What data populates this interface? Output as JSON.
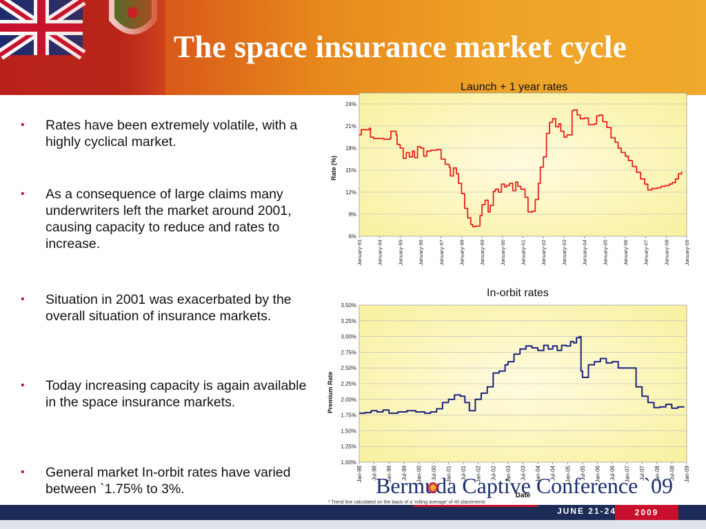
{
  "slide": {
    "title": "The space insurance market cycle",
    "bullets": [
      "Rates have been extremely volatile, with a highly cyclical market.",
      "As a consequence of large claims many underwriters left the market around 2001, causing capacity to reduce and rates to increase.",
      "Situation in 2001 was exacerbated by the overall situation of insurance markets.",
      "Today increasing capacity is again available in the space insurance markets.",
      "General market In-orbit rates have varied between `1.75% to 3%."
    ],
    "bullet_glyph": "•",
    "footnote": "* Trend line calculated on the basis of a 'rolling average' of 40 placements",
    "conference": "Bermuda Captive Conference `09",
    "dates": "JUNE 21-24",
    "year": "2009",
    "colors": {
      "header_red": "#c0321a",
      "header_orange": "#f0a92a",
      "accent_red": "#c8102e",
      "navy": "#1c2c56",
      "launch_line": "#e8201a",
      "inorbit_line": "#1a2080"
    }
  },
  "chart_data": [
    {
      "type": "line",
      "title": "Launch + 1 year rates",
      "xlabel": "",
      "ylabel": "Rate (%)",
      "yticks": [
        "6%",
        "9%",
        "12%",
        "15%",
        "18%",
        "21%",
        "24%"
      ],
      "ylim": [
        6,
        25.5
      ],
      "xticks": [
        "January-93",
        "January-94",
        "January-95",
        "January-96",
        "January-97",
        "January-98",
        "January-99",
        "January-00",
        "January-01",
        "January-02",
        "January-03",
        "January-04",
        "January-05",
        "January-06",
        "January-07",
        "January-08",
        "January-09"
      ],
      "xlim": [
        1993,
        2009
      ],
      "grid": true,
      "series": [
        {
          "color": "#e8201a",
          "x": [
            1993.0,
            1993.1,
            1993.5,
            1993.55,
            1993.7,
            1994.2,
            1994.5,
            1994.55,
            1994.8,
            1994.85,
            1995.0,
            1995.15,
            1995.3,
            1995.45,
            1995.6,
            1995.7,
            1995.85,
            1996.0,
            1996.15,
            1996.3,
            1996.5,
            1996.8,
            1997.0,
            1997.2,
            1997.4,
            1997.45,
            1997.6,
            1997.75,
            1997.85,
            1998.0,
            1998.15,
            1998.3,
            1998.45,
            1998.55,
            1998.7,
            1998.9,
            1999.0,
            1999.15,
            1999.3,
            1999.4,
            1999.55,
            1999.65,
            1999.8,
            1999.95,
            2000.1,
            2000.2,
            2000.35,
            2000.5,
            2000.65,
            2000.75,
            2000.9,
            2001.1,
            2001.25,
            2001.45,
            2001.6,
            2001.75,
            2001.85,
            2002.0,
            2002.15,
            2002.3,
            2002.45,
            2002.6,
            2002.75,
            2002.85,
            2003.0,
            2003.15,
            2003.4,
            2003.5,
            2003.65,
            2003.8,
            2004.0,
            2004.2,
            2004.5,
            2004.6,
            2004.75,
            2004.9,
            2005.1,
            2005.3,
            2005.5,
            2005.65,
            2005.8,
            2006.0,
            2006.15,
            2006.35,
            2006.55,
            2006.75,
            2006.95,
            2007.1,
            2007.3,
            2007.55,
            2007.75,
            2007.95,
            2008.15,
            2008.3,
            2008.45,
            2008.6,
            2008.75
          ],
          "y": [
            19.8,
            20.5,
            20.7,
            19.5,
            19.3,
            19.2,
            19.3,
            20.3,
            19.8,
            18.5,
            18.0,
            16.6,
            17.4,
            16.8,
            17.6,
            16.7,
            18.2,
            18.0,
            16.9,
            17.6,
            17.7,
            17.8,
            16.5,
            15.8,
            15.4,
            14.2,
            15.3,
            14.5,
            13.2,
            11.8,
            9.8,
            8.5,
            7.6,
            7.3,
            7.4,
            8.8,
            10.3,
            10.9,
            9.3,
            10.2,
            12.1,
            12.4,
            12.0,
            13.1,
            12.7,
            12.9,
            13.2,
            12.2,
            13.4,
            12.8,
            12.4,
            11.3,
            9.3,
            9.4,
            11.0,
            13.2,
            15.4,
            16.8,
            20.0,
            21.5,
            22.0,
            20.9,
            21.3,
            20.3,
            19.5,
            19.8,
            23.1,
            23.2,
            22.5,
            22.0,
            22.1,
            21.2,
            21.3,
            22.4,
            22.5,
            21.6,
            20.8,
            19.4,
            18.8,
            18.0,
            17.4,
            16.9,
            16.3,
            15.5,
            14.7,
            13.8,
            13.1,
            12.3,
            12.5,
            12.6,
            12.8,
            12.9,
            13.1,
            13.3,
            13.8,
            14.5,
            14.8
          ]
        }
      ]
    },
    {
      "type": "line",
      "title": "In-orbit rates",
      "xlabel": "Date",
      "ylabel": "Premium Rate",
      "yticks": [
        "1.00%",
        "1.25%",
        "1.50%",
        "1.75%",
        "2.00%",
        "2.25%",
        "2.50%",
        "2.75%",
        "3.00%",
        "3.25%",
        "3.50%"
      ],
      "ylim": [
        1.0,
        3.5
      ],
      "xticks": [
        "Jan-98",
        "Jul-98",
        "Jan-99",
        "Jul-99",
        "Jan-00",
        "Jul-00",
        "Jan-01",
        "Jul-01",
        "Jan-02",
        "Jul-02",
        "Jan-03",
        "Jul-03",
        "Jan-04",
        "Jul-04",
        "Jan-05",
        "Jul-05",
        "Jan-06",
        "Jul-06",
        "Jan-07",
        "Jul-07",
        "Jan-08",
        "Jul-08",
        "Jan-09"
      ],
      "xlim": [
        1998.0,
        2009.0
      ],
      "grid": true,
      "series": [
        {
          "color": "#1a2080",
          "x": [
            1998.0,
            1998.2,
            1998.4,
            1998.6,
            1998.8,
            1999.0,
            1999.3,
            1999.6,
            1999.9,
            2000.2,
            2000.4,
            2000.6,
            2000.8,
            2001.0,
            2001.2,
            2001.4,
            2001.55,
            2001.7,
            2001.9,
            2002.1,
            2002.3,
            2002.5,
            2002.7,
            2002.9,
            2003.0,
            2003.2,
            2003.4,
            2003.6,
            2003.8,
            2004.0,
            2004.2,
            2004.35,
            2004.5,
            2004.65,
            2004.8,
            2004.95,
            2005.1,
            2005.2,
            2005.3,
            2005.4,
            2005.45,
            2005.5,
            2005.7,
            2005.9,
            2006.1,
            2006.3,
            2006.5,
            2006.7,
            2006.9,
            2007.1,
            2007.3,
            2007.5,
            2007.7,
            2007.9,
            2008.1,
            2008.3,
            2008.5,
            2008.7,
            2008.9
          ],
          "y": [
            1.78,
            1.79,
            1.82,
            1.8,
            1.83,
            1.78,
            1.8,
            1.82,
            1.8,
            1.78,
            1.8,
            1.85,
            1.95,
            2.0,
            2.07,
            2.05,
            1.95,
            1.82,
            2.0,
            2.1,
            2.2,
            2.42,
            2.45,
            2.55,
            2.6,
            2.72,
            2.8,
            2.85,
            2.82,
            2.78,
            2.86,
            2.8,
            2.85,
            2.78,
            2.86,
            2.85,
            2.92,
            2.9,
            2.98,
            3.0,
            2.45,
            2.35,
            2.55,
            2.6,
            2.65,
            2.58,
            2.6,
            2.5,
            2.5,
            2.5,
            2.2,
            2.05,
            1.95,
            1.87,
            1.88,
            1.92,
            1.86,
            1.88,
            1.87
          ]
        }
      ]
    }
  ]
}
